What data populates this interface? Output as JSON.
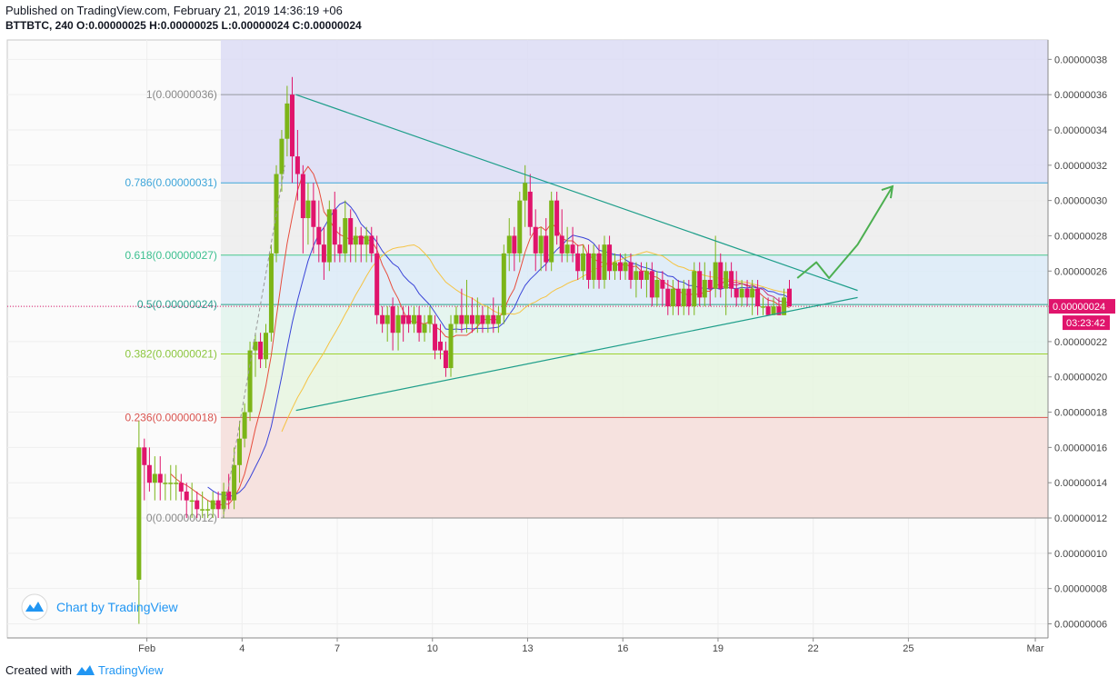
{
  "header": {
    "published": "Published on TradingView.com, February 21, 2019 14:36:19 +06",
    "symbol": "BTTBTC, 240",
    "o_label": "O:",
    "o_value": "0.00000025",
    "h_label": "H:",
    "h_value": "0.00000025",
    "l_label": "L:",
    "l_value": "0.00000024",
    "c_label": "C:",
    "c_value": "0.00000024"
  },
  "watermark": "Chart by TradingView",
  "footer": {
    "prefix": "Created with",
    "brand": "TradingView"
  },
  "colors": {
    "up": "#7cb518",
    "down": "#e0146c",
    "trendline": "#1e9e8a",
    "ma_red": "#e74c3c",
    "ma_blue": "#3a44d8",
    "ma_yellow": "#f5c342",
    "ma_pink": "#c6357f",
    "arrow": "#4caf50",
    "price_badge": "#e0146c"
  },
  "chart_data": {
    "type": "candlestick",
    "price_axis": {
      "ticks": [
        "0.00000038",
        "0.00000036",
        "0.00000034",
        "0.00000032",
        "0.00000030",
        "0.00000028",
        "0.00000026",
        "0.00000024",
        "0.00000022",
        "0.00000020",
        "0.00000018",
        "0.00000016",
        "0.00000014",
        "0.00000012",
        "0.00000010",
        "0.00000008",
        "0.00000006"
      ],
      "range": [
        5.2e-08,
        3.91e-07
      ]
    },
    "time_axis": {
      "ticks": [
        {
          "label": "Feb",
          "day": 1
        },
        {
          "label": "4",
          "day": 4
        },
        {
          "label": "7",
          "day": 7
        },
        {
          "label": "10",
          "day": 10
        },
        {
          "label": "13",
          "day": 13
        },
        {
          "label": "16",
          "day": 16
        },
        {
          "label": "19",
          "day": 19
        },
        {
          "label": "22",
          "day": 22
        },
        {
          "label": "25",
          "day": 25
        },
        {
          "label": "Mar",
          "day": 29
        }
      ],
      "range_days": [
        -3.4,
        29.4
      ]
    },
    "current_price": "0.00000024",
    "countdown": "03:23:42",
    "fibonacci": {
      "start_day": 3.33,
      "end_day": 29.0,
      "levels": [
        {
          "label": "1(0.00000036)",
          "price": 3.6e-07,
          "line": "#9598a1",
          "fill": "#dcdcf5",
          "text": "#888888"
        },
        {
          "label": "0.786(0.00000031)",
          "price": 3.1e-07,
          "line": "#3da5d9",
          "fill": "#ececec",
          "text": "#3da5d9"
        },
        {
          "label": "0.618(0.00000027)",
          "price": 2.69e-07,
          "line": "#48c78e",
          "fill": "#dbeaf7",
          "text": "#3bbf8f"
        },
        {
          "label": "0.5(0.00000024)",
          "price": 2.41e-07,
          "line": "#2e9e8f",
          "fill": "#e1f3ec",
          "text": "#2e9e8f"
        },
        {
          "label": "0.382(0.00000021)",
          "price": 2.13e-07,
          "line": "#9dd32f",
          "fill": "#e6f5df",
          "text": "#8cc63f"
        },
        {
          "label": "0.236(0.00000018)",
          "price": 1.77e-07,
          "line": "#d9534f",
          "fill": "#eef6df",
          "text": "#d9534f"
        },
        {
          "label": "0(0.00000012)",
          "price": 1.2e-07,
          "line": "#8a8a8a",
          "fill": "#f7dede",
          "text": "#8a8a8a"
        }
      ],
      "top_fill": "#dcdcf5"
    },
    "triangle": {
      "upper": [
        [
          5.7,
          3.6e-07
        ],
        [
          23.4,
          2.49e-07
        ]
      ],
      "lower": [
        [
          5.7,
          1.81e-07
        ],
        [
          23.4,
          2.45e-07
        ]
      ]
    },
    "projection_arrow": [
      [
        21.5,
        2.56e-07
      ],
      [
        22.1,
        2.65e-07
      ],
      [
        22.5,
        2.56e-07
      ],
      [
        23.4,
        2.75e-07
      ],
      [
        24.5,
        3.08e-07
      ]
    ],
    "candles": [
      {
        "t": 0.75,
        "o": 8.5e-08,
        "h": 1.75e-07,
        "l": 6e-08,
        "c": 1.6e-07
      },
      {
        "t": 0.92,
        "o": 1.6e-07,
        "h": 1.65e-07,
        "l": 1.3e-07,
        "c": 1.5e-07
      },
      {
        "t": 1.08,
        "o": 1.5e-07,
        "h": 1.6e-07,
        "l": 1.35e-07,
        "c": 1.4e-07
      },
      {
        "t": 1.25,
        "o": 1.4e-07,
        "h": 1.55e-07,
        "l": 1.3e-07,
        "c": 1.45e-07
      },
      {
        "t": 1.42,
        "o": 1.45e-07,
        "h": 1.55e-07,
        "l": 1.3e-07,
        "c": 1.4e-07
      },
      {
        "t": 1.58,
        "o": 1.4e-07,
        "h": 1.45e-07,
        "l": 1.3e-07,
        "c": 1.4e-07
      },
      {
        "t": 1.75,
        "o": 1.4e-07,
        "h": 1.5e-07,
        "l": 1.3e-07,
        "c": 1.4e-07
      },
      {
        "t": 1.92,
        "o": 1.4e-07,
        "h": 1.5e-07,
        "l": 1.3e-07,
        "c": 1.4e-07
      },
      {
        "t": 2.08,
        "o": 1.4e-07,
        "h": 1.45e-07,
        "l": 1.3e-07,
        "c": 1.35e-07
      },
      {
        "t": 2.25,
        "o": 1.35e-07,
        "h": 1.4e-07,
        "l": 1.2e-07,
        "c": 1.3e-07
      },
      {
        "t": 2.42,
        "o": 1.3e-07,
        "h": 1.4e-07,
        "l": 1.2e-07,
        "c": 1.3e-07
      },
      {
        "t": 2.58,
        "o": 1.3e-07,
        "h": 1.35e-07,
        "l": 1.2e-07,
        "c": 1.25e-07
      },
      {
        "t": 2.75,
        "o": 1.25e-07,
        "h": 1.35e-07,
        "l": 1.2e-07,
        "c": 1.25e-07
      },
      {
        "t": 2.92,
        "o": 1.25e-07,
        "h": 1.3e-07,
        "l": 1.2e-07,
        "c": 1.25e-07
      },
      {
        "t": 3.08,
        "o": 1.25e-07,
        "h": 1.35e-07,
        "l": 1.2e-07,
        "c": 1.3e-07
      },
      {
        "t": 3.25,
        "o": 1.3e-07,
        "h": 1.35e-07,
        "l": 1.2e-07,
        "c": 1.25e-07
      },
      {
        "t": 3.42,
        "o": 1.25e-07,
        "h": 1.4e-07,
        "l": 1.2e-07,
        "c": 1.35e-07
      },
      {
        "t": 3.58,
        "o": 1.35e-07,
        "h": 1.45e-07,
        "l": 1.25e-07,
        "c": 1.3e-07
      },
      {
        "t": 3.75,
        "o": 1.3e-07,
        "h": 1.6e-07,
        "l": 1.25e-07,
        "c": 1.5e-07
      },
      {
        "t": 3.92,
        "o": 1.5e-07,
        "h": 1.75e-07,
        "l": 1.4e-07,
        "c": 1.65e-07
      },
      {
        "t": 4.08,
        "o": 1.65e-07,
        "h": 1.85e-07,
        "l": 1.6e-07,
        "c": 1.8e-07
      },
      {
        "t": 4.25,
        "o": 1.8e-07,
        "h": 2.2e-07,
        "l": 1.75e-07,
        "c": 2.15e-07
      },
      {
        "t": 4.42,
        "o": 2.15e-07,
        "h": 2.25e-07,
        "l": 2e-07,
        "c": 2.2e-07
      },
      {
        "t": 4.58,
        "o": 2.2e-07,
        "h": 2.25e-07,
        "l": 2.05e-07,
        "c": 2.1e-07
      },
      {
        "t": 4.75,
        "o": 2.1e-07,
        "h": 2.3e-07,
        "l": 2.05e-07,
        "c": 2.25e-07
      },
      {
        "t": 4.92,
        "o": 2.25e-07,
        "h": 2.75e-07,
        "l": 2.2e-07,
        "c": 2.7e-07
      },
      {
        "t": 5.08,
        "o": 2.7e-07,
        "h": 3.2e-07,
        "l": 2.65e-07,
        "c": 3.15e-07
      },
      {
        "t": 5.25,
        "o": 3.15e-07,
        "h": 3.4e-07,
        "l": 3.05e-07,
        "c": 3.35e-07
      },
      {
        "t": 5.42,
        "o": 3.35e-07,
        "h": 3.65e-07,
        "l": 3.25e-07,
        "c": 3.55e-07
      },
      {
        "t": 5.58,
        "o": 3.6e-07,
        "h": 3.7e-07,
        "l": 3.1e-07,
        "c": 3.25e-07
      },
      {
        "t": 5.75,
        "o": 3.25e-07,
        "h": 3.4e-07,
        "l": 3e-07,
        "c": 3.15e-07
      },
      {
        "t": 5.92,
        "o": 3.15e-07,
        "h": 3.2e-07,
        "l": 2.7e-07,
        "c": 2.9e-07
      },
      {
        "t": 6.08,
        "o": 2.9e-07,
        "h": 3.1e-07,
        "l": 2.75e-07,
        "c": 3e-07
      },
      {
        "t": 6.25,
        "o": 3e-07,
        "h": 3.1e-07,
        "l": 2.7e-07,
        "c": 2.85e-07
      },
      {
        "t": 6.42,
        "o": 2.85e-07,
        "h": 3e-07,
        "l": 2.65e-07,
        "c": 2.75e-07
      },
      {
        "t": 6.58,
        "o": 2.75e-07,
        "h": 2.85e-07,
        "l": 2.55e-07,
        "c": 2.65e-07
      },
      {
        "t": 6.75,
        "o": 2.65e-07,
        "h": 3e-07,
        "l": 2.6e-07,
        "c": 2.95e-07
      },
      {
        "t": 6.92,
        "o": 2.95e-07,
        "h": 3.05e-07,
        "l": 2.65e-07,
        "c": 2.75e-07
      },
      {
        "t": 7.08,
        "o": 2.75e-07,
        "h": 2.85e-07,
        "l": 2.65e-07,
        "c": 2.7e-07
      },
      {
        "t": 7.25,
        "o": 2.7e-07,
        "h": 3e-07,
        "l": 2.65e-07,
        "c": 2.9e-07
      },
      {
        "t": 7.42,
        "o": 2.9e-07,
        "h": 2.95e-07,
        "l": 2.65e-07,
        "c": 2.75e-07
      },
      {
        "t": 7.58,
        "o": 2.75e-07,
        "h": 2.85e-07,
        "l": 2.65e-07,
        "c": 2.8e-07
      },
      {
        "t": 7.75,
        "o": 2.8e-07,
        "h": 2.85e-07,
        "l": 2.65e-07,
        "c": 2.75e-07
      },
      {
        "t": 7.92,
        "o": 2.75e-07,
        "h": 2.85e-07,
        "l": 2.65e-07,
        "c": 2.8e-07
      },
      {
        "t": 8.08,
        "o": 2.8e-07,
        "h": 2.85e-07,
        "l": 2.65e-07,
        "c": 2.7e-07
      },
      {
        "t": 8.25,
        "o": 2.7e-07,
        "h": 2.8e-07,
        "l": 2.3e-07,
        "c": 2.35e-07
      },
      {
        "t": 8.42,
        "o": 2.35e-07,
        "h": 2.4e-07,
        "l": 2.25e-07,
        "c": 2.3e-07
      },
      {
        "t": 8.58,
        "o": 2.3e-07,
        "h": 2.4e-07,
        "l": 2.2e-07,
        "c": 2.35e-07
      },
      {
        "t": 8.75,
        "o": 2.4e-07,
        "h": 2.45e-07,
        "l": 2.15e-07,
        "c": 2.25e-07
      },
      {
        "t": 8.92,
        "o": 2.25e-07,
        "h": 2.4e-07,
        "l": 2.15e-07,
        "c": 2.35e-07
      },
      {
        "t": 9.08,
        "o": 2.35e-07,
        "h": 2.4e-07,
        "l": 2.2e-07,
        "c": 2.3e-07
      },
      {
        "t": 9.25,
        "o": 2.35e-07,
        "h": 2.4e-07,
        "l": 2.25e-07,
        "c": 2.3e-07
      },
      {
        "t": 9.42,
        "o": 2.3e-07,
        "h": 2.4e-07,
        "l": 2.25e-07,
        "c": 2.35e-07
      },
      {
        "t": 9.58,
        "o": 2.35e-07,
        "h": 2.4e-07,
        "l": 2.2e-07,
        "c": 2.25e-07
      },
      {
        "t": 9.75,
        "o": 2.25e-07,
        "h": 2.35e-07,
        "l": 2.2e-07,
        "c": 2.3e-07
      },
      {
        "t": 9.92,
        "o": 2.3e-07,
        "h": 2.4e-07,
        "l": 2.25e-07,
        "c": 2.35e-07
      },
      {
        "t": 10.08,
        "o": 2.3e-07,
        "h": 2.35e-07,
        "l": 2.1e-07,
        "c": 2.15e-07
      },
      {
        "t": 10.25,
        "o": 2.2e-07,
        "h": 2.3e-07,
        "l": 2.1e-07,
        "c": 2.15e-07
      },
      {
        "t": 10.42,
        "o": 2.15e-07,
        "h": 2.2e-07,
        "l": 2e-07,
        "c": 2.05e-07
      },
      {
        "t": 10.58,
        "o": 2.05e-07,
        "h": 2.35e-07,
        "l": 2e-07,
        "c": 2.3e-07
      },
      {
        "t": 10.75,
        "o": 2.3e-07,
        "h": 2.4e-07,
        "l": 2.25e-07,
        "c": 2.35e-07
      },
      {
        "t": 10.92,
        "o": 2.35e-07,
        "h": 2.5e-07,
        "l": 2.25e-07,
        "c": 2.3e-07
      },
      {
        "t": 11.08,
        "o": 2.3e-07,
        "h": 2.55e-07,
        "l": 2.25e-07,
        "c": 2.35e-07
      },
      {
        "t": 11.25,
        "o": 2.35e-07,
        "h": 2.45e-07,
        "l": 2.25e-07,
        "c": 2.3e-07
      },
      {
        "t": 11.42,
        "o": 2.3e-07,
        "h": 2.45e-07,
        "l": 2.25e-07,
        "c": 2.35e-07
      },
      {
        "t": 11.58,
        "o": 2.35e-07,
        "h": 2.4e-07,
        "l": 2.25e-07,
        "c": 2.3e-07
      },
      {
        "t": 11.75,
        "o": 2.3e-07,
        "h": 2.4e-07,
        "l": 2.25e-07,
        "c": 2.35e-07
      },
      {
        "t": 11.92,
        "o": 2.35e-07,
        "h": 2.45e-07,
        "l": 2.25e-07,
        "c": 2.3e-07
      },
      {
        "t": 12.08,
        "o": 2.3e-07,
        "h": 2.4e-07,
        "l": 2.25e-07,
        "c": 2.35e-07
      },
      {
        "t": 12.25,
        "o": 2.35e-07,
        "h": 2.75e-07,
        "l": 2.3e-07,
        "c": 2.7e-07
      },
      {
        "t": 12.42,
        "o": 2.7e-07,
        "h": 2.9e-07,
        "l": 2.6e-07,
        "c": 2.8e-07
      },
      {
        "t": 12.58,
        "o": 2.8e-07,
        "h": 2.85e-07,
        "l": 2.6e-07,
        "c": 2.7e-07
      },
      {
        "t": 12.75,
        "o": 2.7e-07,
        "h": 3.05e-07,
        "l": 2.65e-07,
        "c": 3e-07
      },
      {
        "t": 12.92,
        "o": 3e-07,
        "h": 3.2e-07,
        "l": 2.85e-07,
        "c": 3.1e-07
      },
      {
        "t": 13.08,
        "o": 3.05e-07,
        "h": 3.15e-07,
        "l": 2.8e-07,
        "c": 2.85e-07
      },
      {
        "t": 13.25,
        "o": 2.85e-07,
        "h": 2.95e-07,
        "l": 2.6e-07,
        "c": 2.7e-07
      },
      {
        "t": 13.42,
        "o": 2.7e-07,
        "h": 2.85e-07,
        "l": 2.6e-07,
        "c": 2.8e-07
      },
      {
        "t": 13.58,
        "o": 2.8e-07,
        "h": 2.9e-07,
        "l": 2.6e-07,
        "c": 2.65e-07
      },
      {
        "t": 13.75,
        "o": 2.65e-07,
        "h": 3.05e-07,
        "l": 2.6e-07,
        "c": 3e-07
      },
      {
        "t": 13.92,
        "o": 3e-07,
        "h": 3.05e-07,
        "l": 2.75e-07,
        "c": 2.8e-07
      },
      {
        "t": 14.08,
        "o": 2.8e-07,
        "h": 2.95e-07,
        "l": 2.65e-07,
        "c": 2.7e-07
      },
      {
        "t": 14.25,
        "o": 2.7e-07,
        "h": 2.85e-07,
        "l": 2.65e-07,
        "c": 2.75e-07
      },
      {
        "t": 14.42,
        "o": 2.75e-07,
        "h": 2.85e-07,
        "l": 2.65e-07,
        "c": 2.7e-07
      },
      {
        "t": 14.58,
        "o": 2.7e-07,
        "h": 2.75e-07,
        "l": 2.55e-07,
        "c": 2.6e-07
      },
      {
        "t": 14.75,
        "o": 2.6e-07,
        "h": 2.75e-07,
        "l": 2.55e-07,
        "c": 2.7e-07
      },
      {
        "t": 14.92,
        "o": 2.7e-07,
        "h": 2.75e-07,
        "l": 2.5e-07,
        "c": 2.55e-07
      },
      {
        "t": 15.08,
        "o": 2.55e-07,
        "h": 2.75e-07,
        "l": 2.5e-07,
        "c": 2.7e-07
      },
      {
        "t": 15.25,
        "o": 2.7e-07,
        "h": 2.75e-07,
        "l": 2.5e-07,
        "c": 2.55e-07
      },
      {
        "t": 15.42,
        "o": 2.55e-07,
        "h": 2.8e-07,
        "l": 2.5e-07,
        "c": 2.75e-07
      },
      {
        "t": 15.58,
        "o": 2.75e-07,
        "h": 2.8e-07,
        "l": 2.55e-07,
        "c": 2.6e-07
      },
      {
        "t": 15.75,
        "o": 2.6e-07,
        "h": 2.7e-07,
        "l": 2.55e-07,
        "c": 2.65e-07
      },
      {
        "t": 15.92,
        "o": 2.65e-07,
        "h": 2.7e-07,
        "l": 2.55e-07,
        "c": 2.6e-07
      },
      {
        "t": 16.08,
        "o": 2.6e-07,
        "h": 2.7e-07,
        "l": 2.55e-07,
        "c": 2.65e-07
      },
      {
        "t": 16.25,
        "o": 2.65e-07,
        "h": 2.7e-07,
        "l": 2.5e-07,
        "c": 2.55e-07
      },
      {
        "t": 16.42,
        "o": 2.55e-07,
        "h": 2.65e-07,
        "l": 2.45e-07,
        "c": 2.6e-07
      },
      {
        "t": 16.58,
        "o": 2.6e-07,
        "h": 2.65e-07,
        "l": 2.5e-07,
        "c": 2.55e-07
      },
      {
        "t": 16.75,
        "o": 2.55e-07,
        "h": 2.65e-07,
        "l": 2.45e-07,
        "c": 2.6e-07
      },
      {
        "t": 16.92,
        "o": 2.6e-07,
        "h": 2.65e-07,
        "l": 2.4e-07,
        "c": 2.45e-07
      },
      {
        "t": 17.08,
        "o": 2.45e-07,
        "h": 2.6e-07,
        "l": 2.4e-07,
        "c": 2.55e-07
      },
      {
        "t": 17.25,
        "o": 2.55e-07,
        "h": 2.6e-07,
        "l": 2.4e-07,
        "c": 2.5e-07
      },
      {
        "t": 17.42,
        "o": 2.5e-07,
        "h": 2.55e-07,
        "l": 2.35e-07,
        "c": 2.4e-07
      },
      {
        "t": 17.58,
        "o": 2.4e-07,
        "h": 2.55e-07,
        "l": 2.35e-07,
        "c": 2.5e-07
      },
      {
        "t": 17.75,
        "o": 2.5e-07,
        "h": 2.55e-07,
        "l": 2.35e-07,
        "c": 2.4e-07
      },
      {
        "t": 17.92,
        "o": 2.4e-07,
        "h": 2.55e-07,
        "l": 2.35e-07,
        "c": 2.5e-07
      },
      {
        "t": 18.08,
        "o": 2.5e-07,
        "h": 2.55e-07,
        "l": 2.35e-07,
        "c": 2.4e-07
      },
      {
        "t": 18.25,
        "o": 2.4e-07,
        "h": 2.65e-07,
        "l": 2.35e-07,
        "c": 2.6e-07
      },
      {
        "t": 18.42,
        "o": 2.6e-07,
        "h": 2.65e-07,
        "l": 2.4e-07,
        "c": 2.45e-07
      },
      {
        "t": 18.58,
        "o": 2.45e-07,
        "h": 2.65e-07,
        "l": 2.4e-07,
        "c": 2.55e-07
      },
      {
        "t": 18.75,
        "o": 2.55e-07,
        "h": 2.6e-07,
        "l": 2.4e-07,
        "c": 2.5e-07
      },
      {
        "t": 18.92,
        "o": 2.5e-07,
        "h": 2.8e-07,
        "l": 2.45e-07,
        "c": 2.65e-07
      },
      {
        "t": 19.08,
        "o": 2.65e-07,
        "h": 2.7e-07,
        "l": 2.45e-07,
        "c": 2.5e-07
      },
      {
        "t": 19.25,
        "o": 2.5e-07,
        "h": 2.65e-07,
        "l": 2.35e-07,
        "c": 2.6e-07
      },
      {
        "t": 19.42,
        "o": 2.6e-07,
        "h": 2.65e-07,
        "l": 2.45e-07,
        "c": 2.5e-07
      },
      {
        "t": 19.58,
        "o": 2.5e-07,
        "h": 2.6e-07,
        "l": 2.4e-07,
        "c": 2.45e-07
      },
      {
        "t": 19.75,
        "o": 2.45e-07,
        "h": 2.55e-07,
        "l": 2.4e-07,
        "c": 2.5e-07
      },
      {
        "t": 19.92,
        "o": 2.5e-07,
        "h": 2.55e-07,
        "l": 2.4e-07,
        "c": 2.45e-07
      },
      {
        "t": 20.08,
        "o": 2.45e-07,
        "h": 2.55e-07,
        "l": 2.35e-07,
        "c": 2.5e-07
      },
      {
        "t": 20.25,
        "o": 2.5e-07,
        "h": 2.55e-07,
        "l": 2.35e-07,
        "c": 2.4e-07
      },
      {
        "t": 20.42,
        "o": 2.4e-07,
        "h": 2.45e-07,
        "l": 2.35e-07,
        "c": 2.4e-07
      },
      {
        "t": 20.58,
        "o": 2.4e-07,
        "h": 2.45e-07,
        "l": 2.35e-07,
        "c": 2.35e-07
      },
      {
        "t": 20.75,
        "o": 2.35e-07,
        "h": 2.45e-07,
        "l": 2.35e-07,
        "c": 2.4e-07
      },
      {
        "t": 20.92,
        "o": 2.4e-07,
        "h": 2.45e-07,
        "l": 2.35e-07,
        "c": 2.35e-07
      },
      {
        "t": 21.08,
        "o": 2.35e-07,
        "h": 2.5e-07,
        "l": 2.35e-07,
        "c": 2.45e-07
      },
      {
        "t": 21.25,
        "o": 2.5e-07,
        "h": 2.55e-07,
        "l": 2.4e-07,
        "c": 2.4e-07
      }
    ]
  }
}
